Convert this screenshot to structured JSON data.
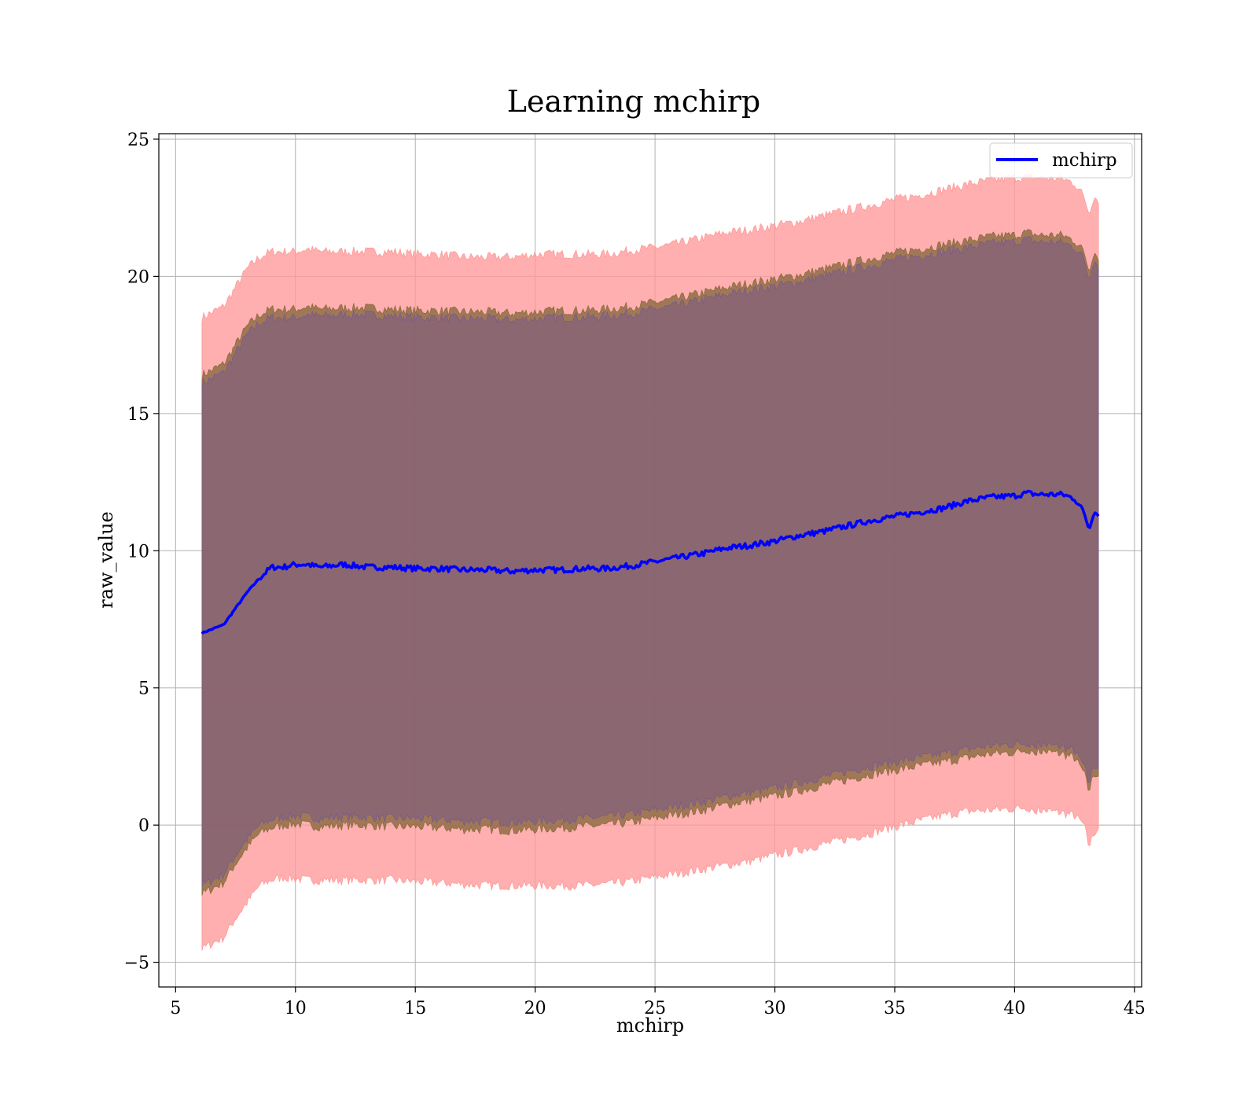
{
  "chart_data": {
    "type": "area",
    "title": "Learning mchirp",
    "xlabel": "mchirp",
    "ylabel": "raw_value",
    "xlim": [
      4.3,
      45.3
    ],
    "ylim": [
      -5.9,
      25.2
    ],
    "xticks": [
      5,
      10,
      15,
      20,
      25,
      30,
      35,
      40,
      45
    ],
    "yticks": [
      -5,
      0,
      5,
      10,
      15,
      20,
      25
    ],
    "ytick_labels": [
      "−5",
      "0",
      "5",
      "10",
      "15",
      "20",
      "25"
    ],
    "grid": true,
    "legend": {
      "placement": "top-right",
      "entries": [
        "mchirp"
      ]
    },
    "x": [
      6.1,
      7.0,
      7.5,
      8.0,
      8.5,
      9.0,
      9.5,
      10.0,
      10.5,
      11.0,
      12.0,
      13.0,
      14.0,
      15.0,
      16.0,
      17.0,
      18.0,
      19.0,
      20.0,
      21.0,
      22.0,
      23.0,
      24.0,
      25.0,
      26.0,
      27.0,
      28.0,
      29.0,
      30.0,
      31.0,
      32.0,
      33.0,
      34.0,
      35.0,
      36.0,
      37.0,
      38.0,
      39.0,
      40.0,
      40.5,
      41.0,
      42.0,
      42.5,
      42.9,
      43.1,
      43.3,
      43.5
    ],
    "series": [
      {
        "name": "mchirp",
        "color": "#0000ff",
        "values": [
          7.0,
          7.3,
          7.9,
          8.5,
          9.0,
          9.4,
          9.4,
          9.5,
          9.5,
          9.4,
          9.5,
          9.4,
          9.4,
          9.35,
          9.35,
          9.3,
          9.3,
          9.25,
          9.3,
          9.3,
          9.35,
          9.35,
          9.45,
          9.6,
          9.75,
          9.9,
          10.1,
          10.2,
          10.35,
          10.55,
          10.7,
          10.9,
          11.1,
          11.25,
          11.4,
          11.55,
          11.8,
          11.95,
          12.0,
          12.1,
          12.05,
          12.05,
          11.9,
          11.4,
          10.8,
          11.4,
          11.35
        ]
      }
    ],
    "bands": [
      {
        "color": "#ff9999",
        "opacity": 0.78,
        "upper": [
          18.5,
          18.9,
          19.6,
          20.3,
          20.7,
          20.9,
          20.9,
          20.9,
          21.0,
          20.9,
          20.9,
          20.9,
          20.9,
          20.8,
          20.8,
          20.7,
          20.7,
          20.7,
          20.8,
          20.8,
          20.8,
          20.8,
          20.95,
          21.05,
          21.2,
          21.4,
          21.6,
          21.7,
          21.85,
          22.0,
          22.2,
          22.4,
          22.6,
          22.8,
          22.95,
          23.15,
          23.35,
          23.5,
          23.6,
          23.6,
          23.6,
          23.55,
          23.4,
          22.9,
          22.3,
          22.9,
          22.8
        ],
        "lower": [
          -4.5,
          -4.1,
          -3.4,
          -2.8,
          -2.2,
          -2.0,
          -1.9,
          -1.95,
          -2.0,
          -2.0,
          -2.0,
          -2.0,
          -2.0,
          -2.05,
          -2.1,
          -2.15,
          -2.2,
          -2.2,
          -2.2,
          -2.2,
          -2.2,
          -2.15,
          -2.05,
          -1.9,
          -1.75,
          -1.6,
          -1.45,
          -1.3,
          -1.1,
          -0.9,
          -0.7,
          -0.5,
          -0.3,
          -0.05,
          0.15,
          0.35,
          0.5,
          0.55,
          0.6,
          0.65,
          0.55,
          0.45,
          0.35,
          0.0,
          -0.8,
          -0.3,
          -0.1
        ]
      },
      {
        "color": "#8a6a40",
        "opacity": 0.8,
        "upper": [
          16.4,
          16.8,
          17.5,
          18.2,
          18.6,
          18.8,
          18.8,
          18.8,
          18.9,
          18.8,
          18.85,
          18.85,
          18.8,
          18.75,
          18.75,
          18.7,
          18.7,
          18.65,
          18.7,
          18.75,
          18.75,
          18.8,
          18.9,
          19.05,
          19.2,
          19.4,
          19.6,
          19.75,
          19.9,
          20.05,
          20.25,
          20.45,
          20.65,
          20.85,
          21.0,
          21.15,
          21.3,
          21.45,
          21.5,
          21.6,
          21.5,
          21.5,
          21.3,
          20.9,
          20.2,
          20.9,
          20.7
        ],
        "lower": [
          -2.5,
          -2.1,
          -1.4,
          -0.8,
          -0.3,
          -0.1,
          0.0,
          0.05,
          0.0,
          -0.05,
          0.0,
          0.0,
          -0.05,
          -0.05,
          -0.1,
          -0.15,
          -0.15,
          -0.2,
          -0.15,
          -0.1,
          -0.05,
          0.0,
          0.1,
          0.25,
          0.4,
          0.55,
          0.75,
          0.9,
          1.05,
          1.25,
          1.45,
          1.65,
          1.85,
          2.0,
          2.15,
          2.3,
          2.45,
          2.6,
          2.65,
          2.75,
          2.7,
          2.6,
          2.45,
          1.9,
          1.2,
          1.9,
          1.8
        ]
      },
      {
        "color": "#7a5a8a",
        "opacity": 0.55,
        "upper": [
          16.1,
          16.5,
          17.2,
          17.9,
          18.3,
          18.5,
          18.5,
          18.5,
          18.6,
          18.55,
          18.6,
          18.6,
          18.55,
          18.5,
          18.5,
          18.45,
          18.45,
          18.4,
          18.45,
          18.5,
          18.5,
          18.55,
          18.65,
          18.8,
          18.95,
          19.15,
          19.35,
          19.5,
          19.65,
          19.8,
          20.0,
          20.2,
          20.4,
          20.6,
          20.75,
          20.9,
          21.05,
          21.2,
          21.25,
          21.35,
          21.25,
          21.25,
          21.05,
          20.65,
          19.9,
          20.6,
          20.4
        ],
        "lower": [
          -2.2,
          -1.8,
          -1.1,
          -0.5,
          0.0,
          0.2,
          0.3,
          0.35,
          0.3,
          0.25,
          0.3,
          0.3,
          0.25,
          0.25,
          0.2,
          0.15,
          0.15,
          0.1,
          0.15,
          0.2,
          0.25,
          0.3,
          0.4,
          0.55,
          0.7,
          0.85,
          1.05,
          1.2,
          1.35,
          1.55,
          1.75,
          1.95,
          2.15,
          2.3,
          2.45,
          2.6,
          2.75,
          2.9,
          2.95,
          3.0,
          2.95,
          2.85,
          2.7,
          2.15,
          1.5,
          2.2,
          2.1
        ]
      }
    ]
  }
}
